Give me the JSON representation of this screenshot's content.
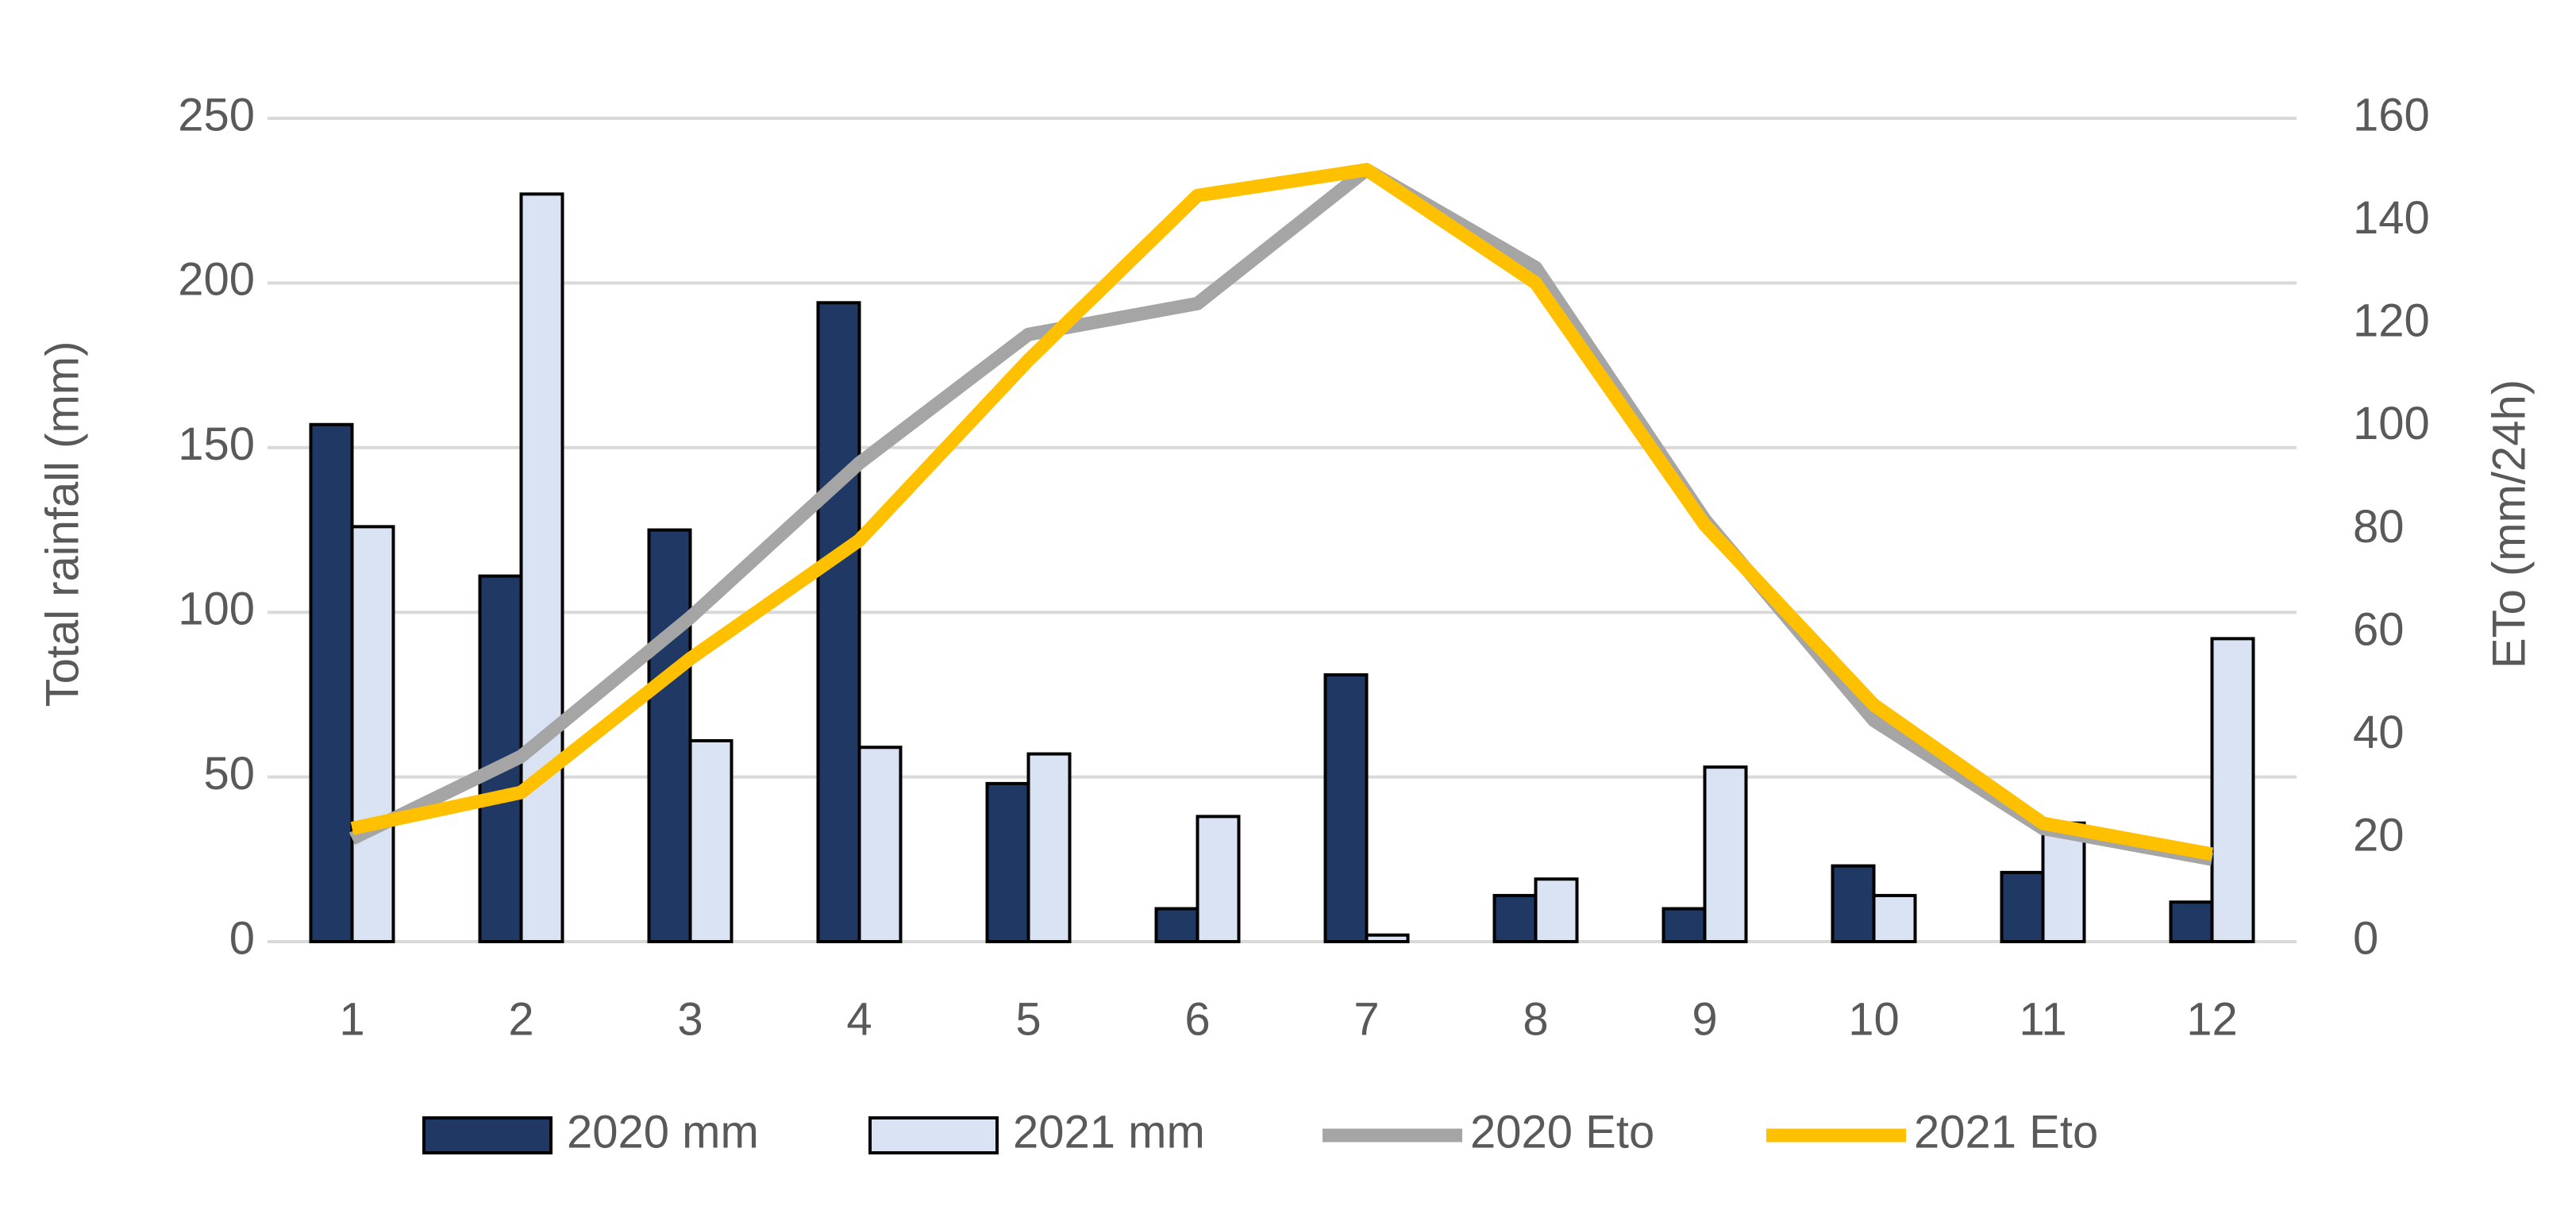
{
  "chart_data": {
    "type": "bar-line",
    "categories": [
      "1",
      "2",
      "3",
      "4",
      "5",
      "6",
      "7",
      "8",
      "9",
      "10",
      "11",
      "12"
    ],
    "y_label": "Total rainfall (mm)",
    "y2_label": "ETo (mm/24h)",
    "ylim": [
      0,
      250
    ],
    "yticks": [
      0,
      50,
      100,
      150,
      200,
      250
    ],
    "y2lim": [
      0,
      160
    ],
    "y2ticks": [
      0,
      20,
      40,
      60,
      80,
      100,
      120,
      140,
      160
    ],
    "grid": true,
    "legend": "bottom",
    "series": [
      {
        "name": "2020 mm",
        "type": "bar",
        "color": "#203864",
        "values": [
          157,
          111,
          125,
          194,
          48,
          10,
          81,
          14,
          10,
          23,
          21,
          12
        ]
      },
      {
        "name": "2021 mm",
        "type": "bar",
        "color": "#dae3f3",
        "values": [
          126,
          227,
          61,
          59,
          57,
          38,
          2,
          19,
          53,
          14,
          36,
          92
        ]
      },
      {
        "name": "2020 Eto",
        "type": "line",
        "axis": "y2",
        "color": "#a5a5a5",
        "values": [
          20,
          36,
          63,
          93,
          118,
          124,
          150,
          131,
          82,
          43,
          22,
          16
        ]
      },
      {
        "name": "2021 Eto",
        "type": "line",
        "axis": "y2",
        "color": "#ffc000",
        "values": [
          22,
          29,
          55,
          78,
          113,
          145,
          150,
          128,
          81,
          46,
          23,
          17
        ]
      }
    ]
  }
}
